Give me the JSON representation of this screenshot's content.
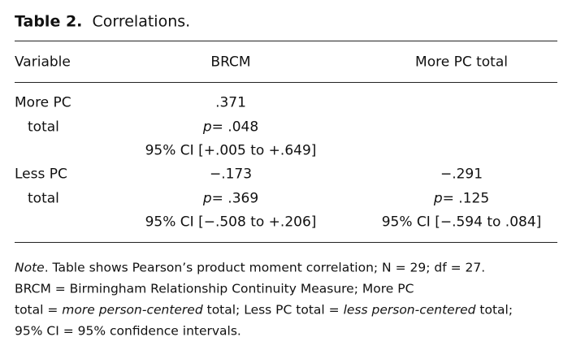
{
  "title": {
    "label": "Table 2.",
    "text": "Correlations."
  },
  "table": {
    "header": [
      "Variable",
      "BRCM",
      "More PC total"
    ],
    "rows": [
      {
        "variable": [
          "More PC",
          "total"
        ],
        "cells": [
          {
            "r": ".371",
            "p_label": "p",
            "p": "= .048",
            "ci": "95% CI [+.005 to +.649]"
          }
        ]
      },
      {
        "variable": [
          "Less PC",
          "total"
        ],
        "cells": [
          {
            "r": "−.173",
            "p_label": "p",
            "p": "= .369",
            "ci": "95% CI [−.508 to +.206]"
          },
          {
            "r": "−.291",
            "p_label": "p",
            "p": "= .125",
            "ci": "95% CI [−.594 to .084]"
          }
        ]
      }
    ]
  },
  "note": [
    [
      {
        "text": "Note",
        "italic": true
      },
      {
        "text": ". Table shows Pearson’s product moment correlation; N = 29; df = 27.",
        "italic": false
      }
    ],
    [
      {
        "text": "BRCM = Birmingham Relationship Continuity Measure; More PC",
        "italic": false
      }
    ],
    [
      {
        "text": "total = ",
        "italic": false
      },
      {
        "text": "more person-centered",
        "italic": true
      },
      {
        "text": " total; Less PC total = ",
        "italic": false
      },
      {
        "text": "less person-centered",
        "italic": true
      },
      {
        "text": " total;",
        "italic": false
      }
    ],
    [
      {
        "text": "95% CI = 95% confidence intervals.",
        "italic": false
      }
    ]
  ]
}
